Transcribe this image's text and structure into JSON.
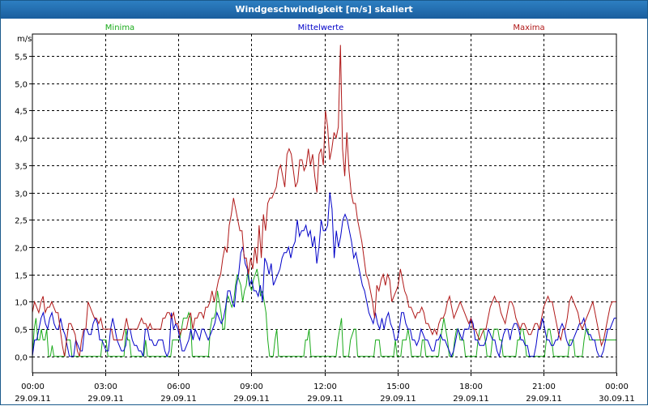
{
  "window": {
    "title": "Windgeschwindigkeit [m/s] skaliert"
  },
  "colors": {
    "minima": "#1aaa1a",
    "mittelwerte": "#0000c8",
    "maxima": "#b01818",
    "grid": "#000000"
  },
  "chart_data": {
    "type": "line",
    "title": "Windgeschwindigkeit [m/s] skaliert",
    "ylabel": "m/s",
    "ylim": [
      -0.3,
      5.9
    ],
    "y_ticks": [
      0.0,
      0.5,
      1.0,
      1.5,
      2.0,
      2.5,
      3.0,
      3.5,
      4.0,
      4.5,
      5.0,
      5.5
    ],
    "y_tick_labels": [
      "0,0",
      "0,5",
      "1,0",
      "1,5",
      "2,0",
      "2,5",
      "3,0",
      "3,5",
      "4,0",
      "4,5",
      "5,0",
      "5,5"
    ],
    "xlim": [
      0,
      24
    ],
    "x_ticks": [
      0,
      3,
      6,
      9,
      12,
      15,
      18,
      21,
      24
    ],
    "x_tick_labels": [
      {
        "time": "00:00",
        "date": "29.09.11"
      },
      {
        "time": "03:00",
        "date": "29.09.11"
      },
      {
        "time": "06:00",
        "date": "29.09.11"
      },
      {
        "time": "09:00",
        "date": "29.09.11"
      },
      {
        "time": "12:00",
        "date": "29.09.11"
      },
      {
        "time": "15:00",
        "date": "29.09.11"
      },
      {
        "time": "18:00",
        "date": "29.09.11"
      },
      {
        "time": "21:00",
        "date": "29.09.11"
      },
      {
        "time": "00:00",
        "date": "30.09.11"
      }
    ],
    "interval_hours": 0.1667,
    "series": [
      {
        "name": "Minima",
        "color": "#1aaa1a",
        "values": [
          0.0,
          0.5,
          0.7,
          0.3,
          0.3,
          0.5,
          0.3,
          0.3,
          0.5,
          0.0,
          0.0,
          0.2,
          0.0,
          0.0,
          0.0,
          0.0,
          0.0,
          0.0,
          0.0,
          0.3,
          0.3,
          0.3,
          0.0,
          0.0,
          0.0,
          0.0,
          0.0,
          0.0,
          0.0,
          0.0,
          0.0,
          0.0,
          0.0,
          0.0,
          0.0,
          0.0,
          0.0,
          0.0,
          0.0,
          0.3,
          0.3,
          0.3,
          0.0,
          0.0,
          0.0,
          0.0,
          0.0,
          0.0,
          0.0,
          0.0,
          0.0,
          0.0,
          0.5,
          0.3,
          0.3,
          0.0,
          0.0,
          0.0,
          0.0,
          0.0,
          0.0,
          0.0,
          0.0,
          0.3,
          0.0,
          0.0,
          0.0,
          0.0,
          0.0,
          0.0,
          0.0,
          0.0,
          0.0,
          0.0,
          0.0,
          0.0,
          0.0,
          0.0,
          0.3,
          0.3,
          0.3,
          0.3,
          0.3,
          0.5,
          0.7,
          0.7,
          0.7,
          0.8,
          0.7,
          0.0,
          0.0,
          0.0,
          0.0,
          0.0,
          0.0,
          0.0,
          0.0,
          0.0,
          0.0,
          0.5,
          0.7,
          0.7,
          0.8,
          1.2,
          1.0,
          0.8,
          0.5,
          0.5,
          1.0,
          1.1,
          1.0,
          0.9,
          1.0,
          1.3,
          1.5,
          1.4,
          1.3,
          1.0,
          1.2,
          1.3,
          1.6,
          1.3,
          1.2,
          1.4,
          1.5,
          1.6,
          1.4,
          1.1,
          1.2,
          1.0,
          0.8,
          0.3,
          0.0,
          0.0,
          0.0,
          0.3,
          0.5,
          0.0,
          0.0,
          0.0,
          0.0,
          0.0,
          0.0,
          0.0,
          0.0,
          0.0,
          0.0,
          0.0,
          0.0,
          0.0,
          0.0,
          0.0,
          0.3,
          0.3,
          0.5,
          0.0,
          0.0,
          0.0,
          0.0,
          0.0,
          0.0,
          0.0,
          0.0,
          0.0,
          0.0,
          0.0,
          0.0,
          0.0,
          0.0,
          0.0,
          0.3,
          0.5,
          0.7,
          0.0,
          0.0,
          0.0,
          0.0,
          0.3,
          0.4,
          0.5,
          0.5,
          0.0,
          0.0,
          0.0,
          0.0,
          0.0,
          0.0,
          0.0,
          0.0,
          0.0,
          0.0,
          0.3,
          0.3,
          0.3,
          0.0,
          0.0,
          0.0,
          0.0,
          0.0,
          0.0,
          0.0,
          0.0,
          0.3,
          0.0,
          0.0,
          0.0,
          0.3,
          0.3,
          0.3,
          0.5,
          0.3,
          0.0,
          0.0,
          0.0,
          0.0,
          0.0,
          0.0,
          0.3,
          0.3,
          0.0,
          0.0,
          0.0,
          0.0,
          0.0,
          0.0,
          0.0,
          0.0,
          0.3,
          0.5,
          0.7,
          0.5,
          0.3,
          0.0,
          0.0,
          0.0,
          0.3,
          0.5,
          0.5,
          0.3,
          0.3,
          0.3,
          0.0,
          0.0,
          0.0,
          0.0,
          0.0,
          0.0,
          0.0,
          0.3,
          0.5,
          0.5,
          0.5,
          0.3,
          0.0,
          0.0,
          0.0,
          0.3,
          0.5,
          0.5,
          0.5,
          0.3,
          0.3,
          0.0,
          0.0,
          0.0,
          0.0,
          0.0,
          0.0,
          0.0,
          0.0,
          0.3,
          0.3,
          0.5,
          0.5,
          0.3,
          0.0,
          0.0,
          0.0,
          0.0,
          0.0,
          0.0,
          0.0,
          0.0,
          0.0,
          0.0,
          0.0,
          0.3,
          0.5,
          0.5,
          0.3,
          0.0,
          0.0,
          0.0,
          0.0,
          0.0,
          0.0,
          0.0,
          0.0,
          0.0,
          0.3,
          0.3,
          0.3,
          0.0,
          0.0,
          0.0,
          0.0,
          0.0,
          0.3,
          0.5,
          0.5,
          0.3,
          0.3,
          0.3,
          0.3,
          0.3,
          0.3,
          0.3,
          0.3,
          0.3,
          0.3,
          0.3,
          0.3,
          0.3,
          0.3,
          0.3,
          0.3
        ]
      },
      {
        "name": "Mittelwerte",
        "color": "#0000c8",
        "values": [
          0.0,
          0.3,
          0.3,
          0.5,
          0.7,
          0.8,
          0.6,
          0.5,
          0.7,
          0.8,
          0.6,
          0.5,
          0.5,
          0.7,
          0.5,
          0.4,
          0.2,
          0.0,
          0.0,
          0.0,
          0.3,
          0.2,
          0.1,
          0.1,
          0.5,
          0.5,
          0.4,
          0.4,
          0.6,
          0.7,
          0.6,
          0.3,
          0.3,
          0.2,
          0.1,
          0.1,
          0.5,
          0.7,
          0.5,
          0.3,
          0.2,
          0.1,
          0.1,
          0.2,
          0.5,
          0.5,
          0.3,
          0.2,
          0.2,
          0.1,
          0.1,
          0.0,
          0.5,
          0.5,
          0.3,
          0.3,
          0.2,
          0.2,
          0.3,
          0.3,
          0.3,
          0.1,
          0.0,
          0.1,
          0.8,
          0.5,
          0.6,
          0.5,
          0.3,
          0.1,
          0.1,
          0.2,
          0.3,
          0.5,
          0.3,
          0.5,
          0.4,
          0.3,
          0.5,
          0.5,
          0.4,
          0.3,
          0.4,
          0.5,
          0.6,
          0.8,
          0.7,
          0.6,
          0.7,
          0.9,
          1.2,
          1.2,
          1.0,
          0.9,
          1.3,
          1.5,
          1.9,
          2.0,
          1.7,
          1.6,
          1.3,
          1.4,
          1.2,
          1.2,
          1.1,
          1.3,
          1.0,
          1.8,
          1.7,
          1.5,
          1.7,
          1.3,
          1.4,
          1.5,
          1.6,
          1.8,
          1.9,
          1.9,
          2.0,
          1.8,
          2.0,
          2.1,
          2.5,
          2.2,
          2.3,
          2.3,
          2.4,
          2.2,
          2.3,
          2.0,
          2.2,
          1.7,
          2.0,
          2.5,
          2.3,
          2.3,
          2.4,
          3.0,
          2.7,
          1.8,
          2.3,
          2.0,
          2.2,
          2.5,
          2.6,
          2.5,
          2.3,
          2.1,
          1.8,
          1.9,
          1.7,
          1.5,
          1.3,
          1.2,
          1.0,
          0.8,
          0.7,
          0.6,
          0.8,
          0.6,
          0.5,
          0.7,
          0.5,
          0.7,
          0.8,
          0.6,
          0.5,
          0.3,
          0.3,
          0.5,
          0.8,
          0.8,
          0.6,
          0.5,
          0.5,
          0.3,
          0.3,
          0.2,
          0.3,
          0.5,
          0.4,
          0.3,
          0.3,
          0.2,
          0.1,
          0.1,
          0.3,
          0.3,
          0.4,
          0.3,
          0.3,
          0.2,
          0.1,
          0.0,
          0.1,
          0.3,
          0.5,
          0.4,
          0.3,
          0.5,
          0.5,
          0.5,
          0.7,
          0.6,
          0.3,
          0.3,
          0.2,
          0.2,
          0.2,
          0.3,
          0.5,
          0.4,
          0.3,
          0.3,
          0.1,
          0.0,
          0.2,
          0.4,
          0.5,
          0.5,
          0.3,
          0.5,
          0.6,
          0.6,
          0.5,
          0.3,
          0.3,
          0.2,
          0.2,
          0.0,
          0.0,
          0.0,
          0.2,
          0.5,
          0.5,
          0.7,
          0.5,
          0.3,
          0.3,
          0.2,
          0.2,
          0.3,
          0.3,
          0.5,
          0.6,
          0.5,
          0.3,
          0.2,
          0.2,
          0.3,
          0.4,
          0.5,
          0.6,
          0.6,
          0.7,
          0.5,
          0.4,
          0.4,
          0.3,
          0.3,
          0.1,
          0.0,
          0.0,
          0.1,
          0.3,
          0.5,
          0.5,
          0.6,
          0.7,
          0.7
        ]
      },
      {
        "name": "Maxima",
        "color": "#b01818",
        "values": [
          0.8,
          1.0,
          0.9,
          0.8,
          1.0,
          1.1,
          0.8,
          0.9,
          0.9,
          1.0,
          0.9,
          0.8,
          0.8,
          0.5,
          0.2,
          0.0,
          0.3,
          0.6,
          0.6,
          0.5,
          0.4,
          0.1,
          0.0,
          0.3,
          0.5,
          0.5,
          1.0,
          0.9,
          0.8,
          0.7,
          0.7,
          0.6,
          0.7,
          0.5,
          0.5,
          0.5,
          0.5,
          0.5,
          0.3,
          0.3,
          0.3,
          0.3,
          0.3,
          0.5,
          0.7,
          0.5,
          0.5,
          0.5,
          0.5,
          0.5,
          0.6,
          0.7,
          0.6,
          0.6,
          0.5,
          0.6,
          0.5,
          0.5,
          0.5,
          0.5,
          0.5,
          0.7,
          0.7,
          0.8,
          0.8,
          0.7,
          0.8,
          0.6,
          0.6,
          0.4,
          0.5,
          0.5,
          0.5,
          0.7,
          0.8,
          0.5,
          0.7,
          0.7,
          0.8,
          0.8,
          0.7,
          0.9,
          0.9,
          1.0,
          1.2,
          1.0,
          1.2,
          1.4,
          1.5,
          1.8,
          2.0,
          1.9,
          2.4,
          2.6,
          2.9,
          2.7,
          2.5,
          2.3,
          2.3,
          1.8,
          1.8,
          1.5,
          1.8,
          1.6,
          2.0,
          1.7,
          2.4,
          1.8,
          2.6,
          2.3,
          2.8,
          2.9,
          2.9,
          3.0,
          3.1,
          3.4,
          3.5,
          3.3,
          3.1,
          3.7,
          3.8,
          3.7,
          3.4,
          3.1,
          3.2,
          3.6,
          3.6,
          3.4,
          3.5,
          3.8,
          3.5,
          3.7,
          3.3,
          3.0,
          3.7,
          3.8,
          3.5,
          4.5,
          4.2,
          3.6,
          3.8,
          4.1,
          4.0,
          4.2,
          5.7,
          3.8,
          3.3,
          4.1,
          3.4,
          3.0,
          2.8,
          2.8,
          2.5,
          2.3,
          2.1,
          1.8,
          1.5,
          1.4,
          1.2,
          1.0,
          0.7,
          1.3,
          1.2,
          1.4,
          1.5,
          1.3,
          1.5,
          1.4,
          1.0,
          1.1,
          1.2,
          1.3,
          1.6,
          1.4,
          1.2,
          1.1,
          0.9,
          0.9,
          0.8,
          0.7,
          0.8,
          0.8,
          0.9,
          0.8,
          0.6,
          0.6,
          0.5,
          0.4,
          0.5,
          0.4,
          0.6,
          0.7,
          0.7,
          0.8,
          1.0,
          1.1,
          0.9,
          0.7,
          0.8,
          0.9,
          1.0,
          0.9,
          0.8,
          0.7,
          0.6,
          0.7,
          0.5,
          0.5,
          0.4,
          0.3,
          0.4,
          0.5,
          0.5,
          0.7,
          0.9,
          1.0,
          1.1,
          1.0,
          1.0,
          0.8,
          0.7,
          0.6,
          0.8,
          1.0,
          1.0,
          0.9,
          0.7,
          0.6,
          0.5,
          0.6,
          0.6,
          0.5,
          0.4,
          0.4,
          0.5,
          0.6,
          0.6,
          0.5,
          0.7,
          0.9,
          1.0,
          1.1,
          1.0,
          1.0,
          0.8,
          0.6,
          0.4,
          0.3,
          0.5,
          0.5,
          0.7,
          1.0,
          1.1,
          1.0,
          0.9,
          0.8,
          0.6,
          0.5,
          0.6,
          0.7,
          0.8,
          0.9,
          1.0,
          0.8,
          0.6,
          0.4,
          0.2,
          0.3,
          0.5,
          0.7,
          0.9,
          1.0,
          1.0,
          1.0
        ]
      }
    ]
  }
}
